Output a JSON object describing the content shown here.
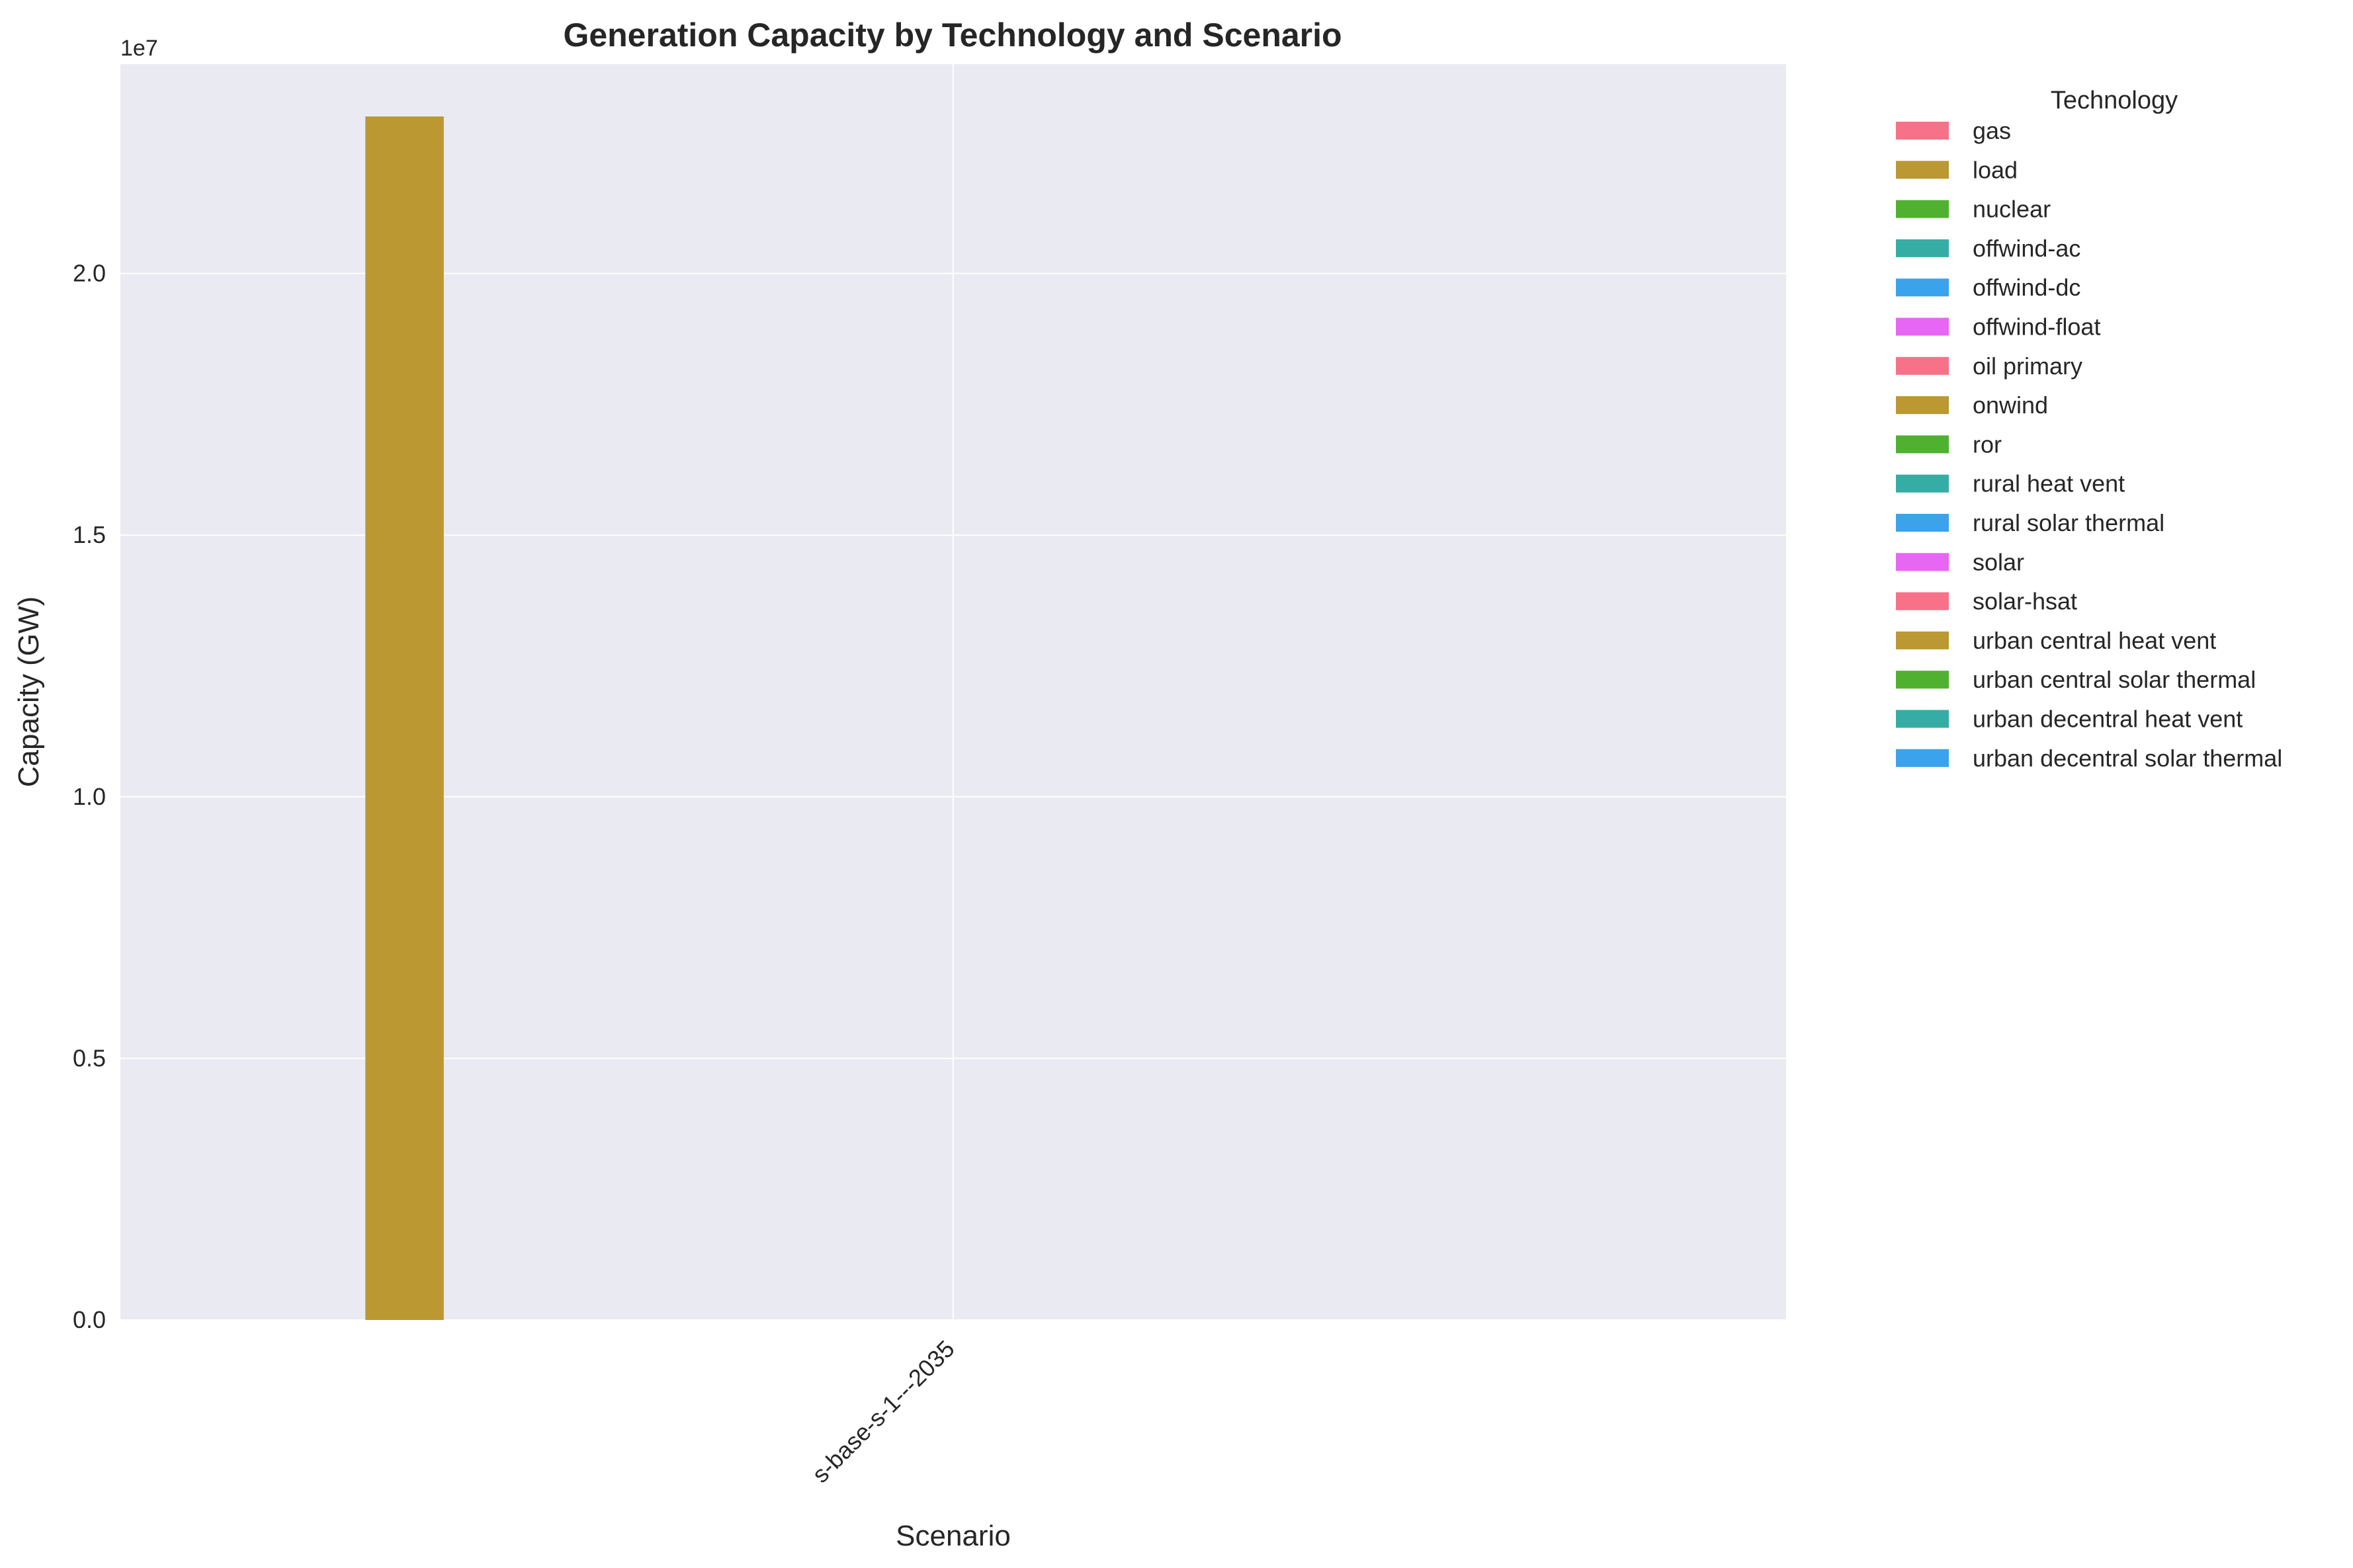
{
  "chart_data": {
    "type": "bar",
    "title": "Generation Capacity by Technology and Scenario",
    "xlabel": "Scenario",
    "ylabel": "Capacity (GW)",
    "y_offset_label": "1e7",
    "y_scale": 10000000,
    "ylim": [
      0,
      24000000
    ],
    "yticks": [
      0,
      5000000,
      10000000,
      15000000,
      20000000
    ],
    "ytick_labels": [
      "0.0",
      "0.5",
      "1.0",
      "1.5",
      "2.0"
    ],
    "categories": [
      "s-base-s-1---2035"
    ],
    "grid": true,
    "legend": {
      "title": "Technology",
      "position": "outside right"
    },
    "series": [
      {
        "name": "gas",
        "color": "#f77189",
        "values": [
          0
        ]
      },
      {
        "name": "load",
        "color": "#bb9832",
        "values": [
          23000000
        ]
      },
      {
        "name": "nuclear",
        "color": "#50b131",
        "values": [
          0
        ]
      },
      {
        "name": "offwind-ac",
        "color": "#36ada4",
        "values": [
          0
        ]
      },
      {
        "name": "offwind-dc",
        "color": "#3ba3ec",
        "values": [
          0
        ]
      },
      {
        "name": "offwind-float",
        "color": "#e866f4",
        "values": [
          0
        ]
      },
      {
        "name": "oil primary",
        "color": "#f77189",
        "values": [
          0
        ]
      },
      {
        "name": "onwind",
        "color": "#bb9832",
        "values": [
          0
        ]
      },
      {
        "name": "ror",
        "color": "#50b131",
        "values": [
          0
        ]
      },
      {
        "name": "rural heat vent",
        "color": "#36ada4",
        "values": [
          0
        ]
      },
      {
        "name": "rural solar thermal",
        "color": "#3ba3ec",
        "values": [
          0
        ]
      },
      {
        "name": "solar",
        "color": "#e866f4",
        "values": [
          0
        ]
      },
      {
        "name": "solar-hsat",
        "color": "#f77189",
        "values": [
          0
        ]
      },
      {
        "name": "urban central heat vent",
        "color": "#bb9832",
        "values": [
          0
        ]
      },
      {
        "name": "urban central solar thermal",
        "color": "#50b131",
        "values": [
          0
        ]
      },
      {
        "name": "urban decentral heat vent",
        "color": "#36ada4",
        "values": [
          0
        ]
      },
      {
        "name": "urban decentral solar thermal",
        "color": "#3ba3ec",
        "values": [
          0
        ]
      }
    ]
  }
}
